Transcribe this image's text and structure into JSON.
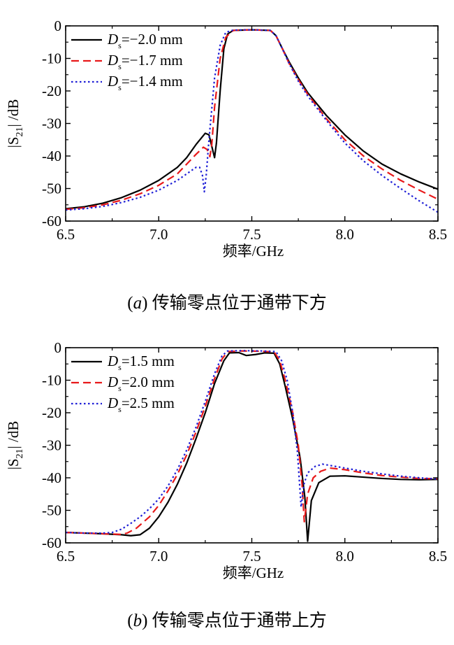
{
  "chart_data": [
    {
      "type": "line",
      "caption_letter": "a",
      "caption_text": "传输零点位于通带下方",
      "xlabel": "频率/GHz",
      "ylabel_main": "|S",
      "ylabel_sub": "21",
      "ylabel_tail": "| /dB",
      "xlim": [
        6.5,
        8.5
      ],
      "ylim": [
        -60,
        0
      ],
      "xticks": [
        "6.5",
        "7.0",
        "7.5",
        "8.0",
        "8.5"
      ],
      "yticks": [
        "0",
        "-10",
        "-20",
        "-30",
        "-40",
        "-50",
        "-60"
      ],
      "legend_position": "top-left",
      "grid": false,
      "series": [
        {
          "name_var": "D",
          "name_sub": "s",
          "name_value": "=−2.0 mm",
          "color": "#000000",
          "style": "solid",
          "points": [
            [
              6.5,
              -56.2
            ],
            [
              6.6,
              -55.6
            ],
            [
              6.7,
              -54.5
            ],
            [
              6.8,
              -52.8
            ],
            [
              6.9,
              -50.5
            ],
            [
              7.0,
              -47.5
            ],
            [
              7.1,
              -43.5
            ],
            [
              7.15,
              -40.5
            ],
            [
              7.2,
              -36.5
            ],
            [
              7.25,
              -33.0
            ],
            [
              7.27,
              -33.5
            ],
            [
              7.285,
              -37.0
            ],
            [
              7.3,
              -40.5
            ],
            [
              7.31,
              -36.0
            ],
            [
              7.33,
              -20.0
            ],
            [
              7.35,
              -7.0
            ],
            [
              7.37,
              -2.5
            ],
            [
              7.4,
              -1.4
            ],
            [
              7.5,
              -1.2
            ],
            [
              7.6,
              -1.4
            ],
            [
              7.63,
              -3.0
            ],
            [
              7.66,
              -6.5
            ],
            [
              7.7,
              -11.0
            ],
            [
              7.75,
              -16.0
            ],
            [
              7.8,
              -20.5
            ],
            [
              7.9,
              -27.5
            ],
            [
              8.0,
              -33.5
            ],
            [
              8.1,
              -38.5
            ],
            [
              8.2,
              -42.5
            ],
            [
              8.3,
              -45.5
            ],
            [
              8.4,
              -48.0
            ],
            [
              8.5,
              -50.2
            ]
          ]
        },
        {
          "name_var": "D",
          "name_sub": "s",
          "name_value": "=−1.7 mm",
          "color": "#e8191a",
          "style": "dashed",
          "points": [
            [
              6.5,
              -56.4
            ],
            [
              6.6,
              -55.9
            ],
            [
              6.7,
              -55.0
            ],
            [
              6.8,
              -53.6
            ],
            [
              6.9,
              -51.6
            ],
            [
              7.0,
              -49.0
            ],
            [
              7.1,
              -45.5
            ],
            [
              7.15,
              -42.5
            ],
            [
              7.2,
              -39.5
            ],
            [
              7.24,
              -37.3
            ],
            [
              7.26,
              -38.0
            ],
            [
              7.275,
              -40.2
            ],
            [
              7.285,
              -36.5
            ],
            [
              7.3,
              -25.0
            ],
            [
              7.33,
              -10.0
            ],
            [
              7.36,
              -3.5
            ],
            [
              7.4,
              -1.4
            ],
            [
              7.5,
              -1.2
            ],
            [
              7.6,
              -1.4
            ],
            [
              7.63,
              -3.0
            ],
            [
              7.66,
              -6.5
            ],
            [
              7.7,
              -11.5
            ],
            [
              7.75,
              -16.5
            ],
            [
              7.8,
              -21.0
            ],
            [
              7.9,
              -28.5
            ],
            [
              8.0,
              -35.0
            ],
            [
              8.1,
              -40.0
            ],
            [
              8.2,
              -44.0
            ],
            [
              8.3,
              -47.5
            ],
            [
              8.4,
              -50.5
            ],
            [
              8.5,
              -53.3
            ]
          ]
        },
        {
          "name_var": "D",
          "name_sub": "s",
          "name_value": "=−1.4 mm",
          "color": "#1f1fd6",
          "style": "dotted",
          "points": [
            [
              6.5,
              -56.6
            ],
            [
              6.6,
              -56.2
            ],
            [
              6.7,
              -55.5
            ],
            [
              6.8,
              -54.3
            ],
            [
              6.9,
              -52.7
            ],
            [
              7.0,
              -50.5
            ],
            [
              7.1,
              -47.5
            ],
            [
              7.15,
              -45.5
            ],
            [
              7.2,
              -43.5
            ],
            [
              7.22,
              -43.5
            ],
            [
              7.235,
              -46.0
            ],
            [
              7.245,
              -51.0
            ],
            [
              7.255,
              -46.0
            ],
            [
              7.27,
              -35.0
            ],
            [
              7.3,
              -16.0
            ],
            [
              7.33,
              -6.0
            ],
            [
              7.36,
              -2.0
            ],
            [
              7.4,
              -1.3
            ],
            [
              7.5,
              -1.2
            ],
            [
              7.6,
              -1.4
            ],
            [
              7.63,
              -3.0
            ],
            [
              7.66,
              -6.5
            ],
            [
              7.7,
              -11.5
            ],
            [
              7.75,
              -17.0
            ],
            [
              7.8,
              -21.5
            ],
            [
              7.9,
              -29.0
            ],
            [
              8.0,
              -36.0
            ],
            [
              8.1,
              -41.5
            ],
            [
              8.2,
              -46.0
            ],
            [
              8.3,
              -50.0
            ],
            [
              8.4,
              -53.8
            ],
            [
              8.5,
              -57.3
            ]
          ]
        }
      ]
    },
    {
      "type": "line",
      "caption_letter": "b",
      "caption_text": "传输零点位于通带上方",
      "xlabel": "频率/GHz",
      "ylabel_main": "|S",
      "ylabel_sub": "21",
      "ylabel_tail": "| /dB",
      "xlim": [
        6.5,
        8.5
      ],
      "ylim": [
        -60,
        0
      ],
      "xticks": [
        "6.5",
        "7.0",
        "7.5",
        "8.0",
        "8.5"
      ],
      "yticks": [
        "0",
        "-10",
        "-20",
        "-30",
        "-40",
        "-50",
        "-60"
      ],
      "legend_position": "top-left",
      "grid": false,
      "series": [
        {
          "name_var": "D",
          "name_sub": "s",
          "name_value": "=1.5 mm",
          "color": "#000000",
          "style": "solid",
          "points": [
            [
              6.5,
              -56.8
            ],
            [
              6.6,
              -57.0
            ],
            [
              6.7,
              -57.2
            ],
            [
              6.8,
              -57.5
            ],
            [
              6.85,
              -57.8
            ],
            [
              6.9,
              -57.5
            ],
            [
              6.95,
              -55.5
            ],
            [
              7.0,
              -52.0
            ],
            [
              7.05,
              -47.5
            ],
            [
              7.1,
              -42.0
            ],
            [
              7.15,
              -35.5
            ],
            [
              7.2,
              -28.0
            ],
            [
              7.25,
              -20.0
            ],
            [
              7.3,
              -11.0
            ],
            [
              7.35,
              -4.0
            ],
            [
              7.38,
              -1.6
            ],
            [
              7.43,
              -1.5
            ],
            [
              7.47,
              -2.4
            ],
            [
              7.52,
              -2.1
            ],
            [
              7.57,
              -1.6
            ],
            [
              7.62,
              -1.7
            ],
            [
              7.65,
              -5.0
            ],
            [
              7.68,
              -12.0
            ],
            [
              7.72,
              -22.0
            ],
            [
              7.76,
              -34.0
            ],
            [
              7.785,
              -46.0
            ],
            [
              7.8,
              -59.5
            ],
            [
              7.82,
              -47.0
            ],
            [
              7.86,
              -41.5
            ],
            [
              7.92,
              -39.5
            ],
            [
              8.0,
              -39.4
            ],
            [
              8.1,
              -39.8
            ],
            [
              8.2,
              -40.2
            ],
            [
              8.3,
              -40.5
            ],
            [
              8.4,
              -40.6
            ],
            [
              8.5,
              -40.5
            ]
          ]
        },
        {
          "name_var": "D",
          "name_sub": "s",
          "name_value": "=2.0 mm",
          "color": "#e8191a",
          "style": "dashed",
          "points": [
            [
              6.5,
              -56.8
            ],
            [
              6.6,
              -57.0
            ],
            [
              6.7,
              -57.2
            ],
            [
              6.8,
              -57.4
            ],
            [
              6.83,
              -57.0
            ],
            [
              6.88,
              -55.5
            ],
            [
              6.95,
              -52.0
            ],
            [
              7.0,
              -48.5
            ],
            [
              7.05,
              -44.0
            ],
            [
              7.1,
              -39.0
            ],
            [
              7.15,
              -33.0
            ],
            [
              7.2,
              -26.0
            ],
            [
              7.25,
              -18.0
            ],
            [
              7.3,
              -9.5
            ],
            [
              7.34,
              -3.5
            ],
            [
              7.37,
              -1.2
            ],
            [
              7.45,
              -1.0
            ],
            [
              7.55,
              -1.1
            ],
            [
              7.62,
              -1.3
            ],
            [
              7.65,
              -4.0
            ],
            [
              7.68,
              -10.0
            ],
            [
              7.72,
              -20.0
            ],
            [
              7.75,
              -30.0
            ],
            [
              7.77,
              -42.0
            ],
            [
              7.782,
              -53.5
            ],
            [
              7.8,
              -45.0
            ],
            [
              7.83,
              -40.0
            ],
            [
              7.87,
              -38.0
            ],
            [
              7.92,
              -37.0
            ],
            [
              8.0,
              -37.5
            ],
            [
              8.1,
              -38.5
            ],
            [
              8.2,
              -39.3
            ],
            [
              8.3,
              -39.8
            ],
            [
              8.4,
              -40.2
            ],
            [
              8.5,
              -40.3
            ]
          ]
        },
        {
          "name_var": "D",
          "name_sub": "s",
          "name_value": "=2.5 mm",
          "color": "#1f1fd6",
          "style": "dotted",
          "points": [
            [
              6.5,
              -56.8
            ],
            [
              6.6,
              -57.0
            ],
            [
              6.7,
              -57.0
            ],
            [
              6.75,
              -56.8
            ],
            [
              6.8,
              -55.8
            ],
            [
              6.85,
              -54.0
            ],
            [
              6.9,
              -52.0
            ],
            [
              6.95,
              -49.5
            ],
            [
              7.0,
              -46.5
            ],
            [
              7.05,
              -42.5
            ],
            [
              7.1,
              -37.5
            ],
            [
              7.15,
              -31.5
            ],
            [
              7.2,
              -24.5
            ],
            [
              7.25,
              -16.5
            ],
            [
              7.3,
              -8.0
            ],
            [
              7.34,
              -2.5
            ],
            [
              7.37,
              -1.0
            ],
            [
              7.45,
              -0.9
            ],
            [
              7.55,
              -1.0
            ],
            [
              7.63,
              -1.2
            ],
            [
              7.66,
              -4.0
            ],
            [
              7.69,
              -10.0
            ],
            [
              7.72,
              -20.0
            ],
            [
              7.745,
              -32.0
            ],
            [
              7.765,
              -49.0
            ],
            [
              7.78,
              -42.0
            ],
            [
              7.8,
              -38.5
            ],
            [
              7.84,
              -36.5
            ],
            [
              7.88,
              -35.8
            ],
            [
              7.95,
              -36.5
            ],
            [
              8.0,
              -37.0
            ],
            [
              8.1,
              -38.0
            ],
            [
              8.2,
              -38.8
            ],
            [
              8.3,
              -39.5
            ],
            [
              8.4,
              -40.0
            ],
            [
              8.5,
              -40.4
            ]
          ]
        }
      ]
    }
  ]
}
